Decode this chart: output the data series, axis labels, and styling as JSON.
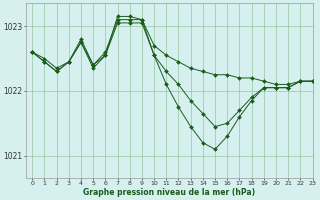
{
  "title": "Graphe pression niveau de la mer (hPa)",
  "background_color": "#d6f0f0",
  "grid_color": "#88bb88",
  "line_color": "#1a5c1a",
  "xlim": [
    -0.5,
    23
  ],
  "ylim": [
    1020.65,
    1023.35
  ],
  "yticks": [
    1021,
    1022,
    1023
  ],
  "xticks": [
    0,
    1,
    2,
    3,
    4,
    5,
    6,
    7,
    8,
    9,
    10,
    11,
    12,
    13,
    14,
    15,
    16,
    17,
    18,
    19,
    20,
    21,
    22,
    23
  ],
  "series": [
    [
      1022.6,
      1022.5,
      1022.35,
      1022.45,
      1022.75,
      1022.4,
      1022.55,
      1023.15,
      1023.15,
      1023.1,
      1022.7,
      1022.55,
      1022.45,
      1022.35,
      1022.3,
      1022.25,
      1022.25,
      1022.2,
      1022.2,
      1022.15,
      1022.1,
      1022.1,
      1022.15,
      1022.15
    ],
    [
      1022.6,
      1022.45,
      1022.3,
      1022.45,
      1022.8,
      1022.4,
      1022.6,
      1023.1,
      1023.1,
      1023.1,
      1022.55,
      1022.1,
      1021.75,
      1021.45,
      1021.2,
      1021.1,
      1021.3,
      1021.6,
      1021.85,
      1022.05,
      1022.05,
      1022.05,
      1022.15,
      1022.15
    ],
    [
      1022.6,
      1022.45,
      1022.3,
      1022.45,
      1022.75,
      1022.35,
      1022.55,
      1023.05,
      1023.05,
      1023.05,
      1022.55,
      1022.3,
      1022.1,
      1021.85,
      1021.65,
      1021.45,
      1021.5,
      1021.7,
      1021.9,
      1022.05,
      1022.05,
      1022.05,
      1022.15,
      1022.15
    ]
  ]
}
